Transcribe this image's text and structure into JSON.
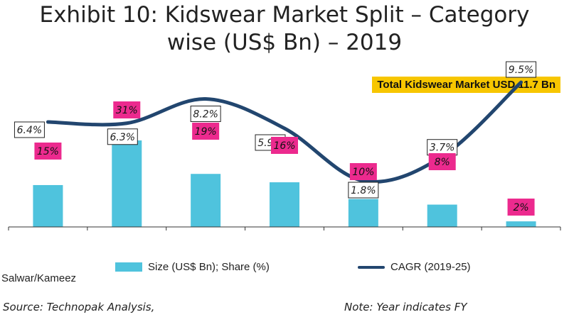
{
  "title": {
    "line1": "Exhibit 10: Kidswear Market Split – Category",
    "line2": "wise (US$ Bn) – 2019"
  },
  "total_badge": "Total Kidswear Market USD 11.7 Bn",
  "legend": {
    "bar_label": "Size (US$ Bn); Share (%)",
    "line_label": "CAGR (2019-25)"
  },
  "category_visible": "Salwar/Kameez",
  "footnote_left": "Source: Technopak Analysis,",
  "footnote_right": "Note: Year indicates FY",
  "colors": {
    "bar": "#4fc3dd",
    "line": "#22466f",
    "share_label_bg": "#ec2a8e",
    "total_badge_bg": "#f7c600"
  },
  "chart_data": {
    "type": "bar",
    "categories": [
      "",
      "",
      "",
      "",
      "",
      "",
      ""
    ],
    "series": [
      {
        "type": "bar",
        "values": [
          15,
          31,
          19,
          16,
          10,
          8,
          2
        ],
        "labels": [
          "15%",
          "31%",
          "19%",
          "16%",
          "10%",
          "8%",
          "2%"
        ]
      },
      {
        "type": "line",
        "values": [
          6.4,
          6.3,
          8.2,
          5.9,
          1.8,
          3.7,
          9.5
        ],
        "labels": [
          "6.4%",
          "6.3%",
          "8.2%",
          "5.9%",
          "1.8%",
          "3.7%",
          "9.5%"
        ]
      }
    ]
  }
}
